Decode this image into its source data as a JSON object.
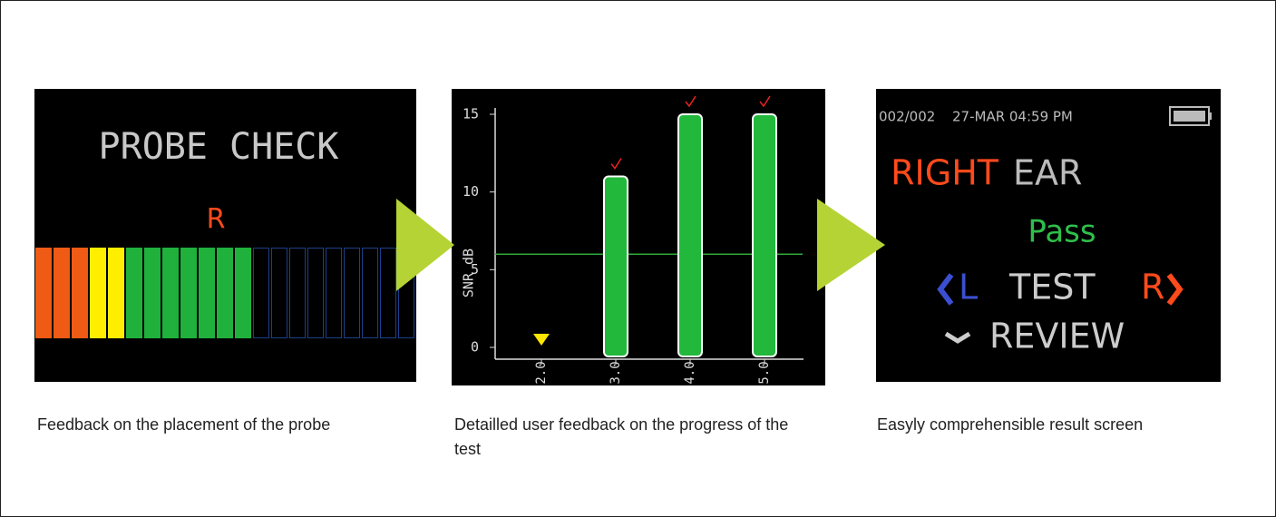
{
  "panels": [
    {
      "screen": {
        "title": "PROBE CHECK",
        "ear": "R"
      },
      "caption": "Feedback on the placement of the probe"
    },
    {
      "chart": {
        "type": "bar",
        "y_label": "SNR dB",
        "categories": [
          "2.0",
          "3.0",
          "4.0",
          "5.0"
        ],
        "values": [
          0,
          11,
          15,
          15
        ],
        "ylim": [
          0,
          15
        ],
        "yticks": [
          0,
          5,
          10,
          15
        ],
        "threshold": 6
      },
      "caption": "Detailled user feedback on the progress of the test"
    },
    {
      "screen": {
        "counter": "002/002",
        "datetime": "27-MAR 04:59 PM",
        "side": "RIGHT",
        "ear_word": "EAR",
        "result": "Pass",
        "left": "L",
        "action": "TEST",
        "right": "R",
        "review": "REVIEW"
      },
      "caption": "Easyly comprehensible result screen"
    }
  ]
}
